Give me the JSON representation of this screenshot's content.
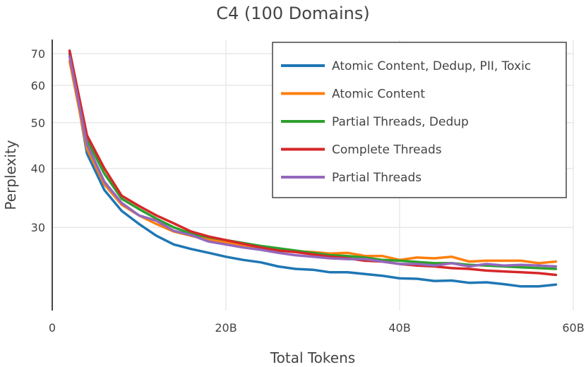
{
  "chart_data": {
    "type": "line",
    "title": "C4 (100 Domains)",
    "xlabel": "Total Tokens",
    "ylabel": "Perplexity",
    "x_scale": "linear",
    "y_scale": "log",
    "xlim": [
      0,
      60
    ],
    "ylim": [
      20,
      75
    ],
    "x_ticks": [
      0,
      20,
      40,
      60
    ],
    "x_tick_labels": [
      "0",
      "20B",
      "40B",
      "60B"
    ],
    "y_ticks": [
      30,
      40,
      50,
      60,
      70
    ],
    "y_tick_labels": [
      "30",
      "40",
      "50",
      "60",
      "70"
    ],
    "grid": true,
    "legend_position": "top-right",
    "x_unit": "billions of tokens",
    "x": [
      2,
      4,
      6,
      8,
      10,
      12,
      14,
      16,
      18,
      20,
      22,
      24,
      26,
      28,
      30,
      32,
      34,
      36,
      38,
      40,
      42,
      44,
      46,
      48,
      50,
      52,
      54,
      56,
      58
    ],
    "series": [
      {
        "name": "Atomic Content, Dedup, PII, Toxic",
        "color": "#1f77b4",
        "values": [
          70,
          43,
          36,
          32.5,
          30.5,
          28.8,
          27.6,
          27.0,
          26.5,
          26.0,
          25.6,
          25.3,
          24.8,
          24.5,
          24.4,
          24.1,
          24.1,
          23.9,
          23.7,
          23.4,
          23.35,
          23.1,
          23.15,
          22.9,
          22.95,
          22.75,
          22.5,
          22.5,
          22.7
        ]
      },
      {
        "name": "Atomic Content",
        "color": "#ff7f0e",
        "values": [
          67.5,
          44,
          37,
          33.5,
          31.8,
          30.5,
          29.4,
          28.8,
          28.3,
          27.9,
          27.5,
          27.2,
          27.0,
          26.7,
          26.6,
          26.4,
          26.5,
          26.1,
          26.1,
          25.6,
          25.9,
          25.8,
          26.0,
          25.4,
          25.5,
          25.5,
          25.5,
          25.2,
          25.4
        ]
      },
      {
        "name": "Partial Threads, Dedup",
        "color": "#2ca02c",
        "values": [
          71,
          46,
          39,
          34.5,
          32.8,
          31.3,
          30.0,
          29.1,
          28.6,
          28.2,
          27.8,
          27.4,
          27.1,
          26.8,
          26.5,
          26.2,
          26.1,
          25.9,
          25.6,
          25.5,
          25.35,
          25.2,
          25.2,
          25.0,
          24.9,
          24.8,
          24.7,
          24.6,
          24.5
        ]
      },
      {
        "name": "Complete Threads",
        "color": "#d62728",
        "values": [
          71,
          47,
          40,
          35,
          33.3,
          31.8,
          30.6,
          29.4,
          28.7,
          28.2,
          27.7,
          27.2,
          26.8,
          26.6,
          26.3,
          26.0,
          25.8,
          25.5,
          25.4,
          25.1,
          24.9,
          24.8,
          24.6,
          24.5,
          24.3,
          24.2,
          24.1,
          24.0,
          23.8
        ]
      },
      {
        "name": "Partial Threads",
        "color": "#9467bd",
        "values": [
          69,
          45,
          37.5,
          33.8,
          31.8,
          31.0,
          29.5,
          28.9,
          28.0,
          27.6,
          27.2,
          26.9,
          26.5,
          26.2,
          26.0,
          25.8,
          25.7,
          25.7,
          25.4,
          25.1,
          25.1,
          24.9,
          25.2,
          24.8,
          25.1,
          24.9,
          25.0,
          24.9,
          24.8
        ]
      }
    ]
  }
}
